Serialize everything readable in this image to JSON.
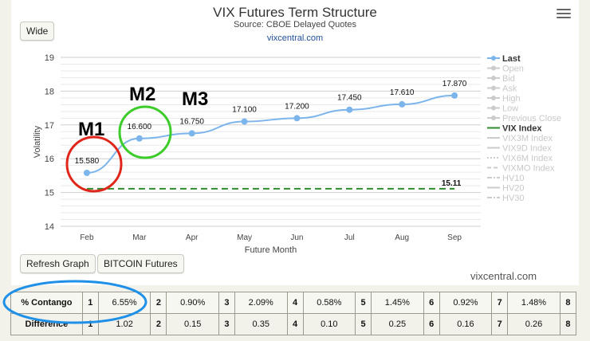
{
  "header": {
    "title": "VIX Futures Term Structure",
    "subtitle": "Source: CBOE Delayed Quotes",
    "site": "vixcentral.com"
  },
  "buttons": {
    "wide": "Wide",
    "refresh": "Refresh Graph",
    "bitcoin": "BITCOIN Futures"
  },
  "footer": {
    "site": "vixcentral.com"
  },
  "annotations": {
    "m1": "M1",
    "m2": "M2",
    "m3": "M3"
  },
  "chart_data": {
    "type": "line",
    "categories": [
      "Feb",
      "Mar",
      "Apr",
      "May",
      "Jun",
      "Jul",
      "Aug",
      "Sep"
    ],
    "series": [
      {
        "name": "Last",
        "values": [
          15.58,
          16.6,
          16.75,
          17.1,
          17.2,
          17.45,
          17.61,
          17.87
        ],
        "labels": [
          "15.580",
          "16.600",
          "16.750",
          "17.100",
          "17.200",
          "17.450",
          "17.610",
          "17.870"
        ],
        "color": "#7cb5ec"
      },
      {
        "name": "VIX Index",
        "values": [
          15.11,
          15.11,
          15.11,
          15.11,
          15.11,
          15.11,
          15.11,
          15.11
        ],
        "label": "15.11",
        "color": "#2e8b2e"
      }
    ],
    "xlabel": "Future Month",
    "ylabel": "Volatility",
    "yticks": [
      14,
      15,
      16,
      17,
      18,
      19
    ],
    "ylim": [
      14,
      19
    ],
    "grid": true,
    "legend_position": "right",
    "legend": [
      {
        "label": "Last",
        "active": true,
        "style": "line-dot",
        "color": "#7cb5ec"
      },
      {
        "label": "Open",
        "active": false,
        "style": "line-dot"
      },
      {
        "label": "Bid",
        "active": false,
        "style": "line-dot"
      },
      {
        "label": "Ask",
        "active": false,
        "style": "line-dot"
      },
      {
        "label": "High",
        "active": false,
        "style": "line-dot"
      },
      {
        "label": "Low",
        "active": false,
        "style": "line-dot"
      },
      {
        "label": "Previous Close",
        "active": false,
        "style": "line-dot"
      },
      {
        "label": "VIX Index",
        "active": true,
        "style": "line",
        "color": "#2e8b2e"
      },
      {
        "label": "VIX3M Index",
        "active": false,
        "style": "line"
      },
      {
        "label": "VIX9D Index",
        "active": false,
        "style": "line"
      },
      {
        "label": "VIX6M Index",
        "active": false,
        "style": "dotted"
      },
      {
        "label": "VIXMO Index",
        "active": false,
        "style": "dashed"
      },
      {
        "label": "HV10",
        "active": false,
        "style": "dash-dot"
      },
      {
        "label": "HV20",
        "active": false,
        "style": "line"
      },
      {
        "label": "HV30",
        "active": false,
        "style": "dash-dot"
      }
    ]
  },
  "contango": {
    "rows": [
      {
        "label": "% Contango",
        "cells": [
          [
            "1",
            "6.55%"
          ],
          [
            "2",
            "0.90%"
          ],
          [
            "3",
            "2.09%"
          ],
          [
            "4",
            "0.58%"
          ],
          [
            "5",
            "1.45%"
          ],
          [
            "6",
            "0.92%"
          ],
          [
            "7",
            "1.48%"
          ]
        ],
        "last": "8"
      },
      {
        "label": "Difference",
        "cells": [
          [
            "1",
            "1.02"
          ],
          [
            "2",
            "0.15"
          ],
          [
            "3",
            "0.35"
          ],
          [
            "4",
            "0.10"
          ],
          [
            "5",
            "0.25"
          ],
          [
            "6",
            "0.16"
          ],
          [
            "7",
            "0.26"
          ]
        ],
        "last": "8"
      }
    ]
  },
  "colors": {
    "highlight_red": "#e0251b",
    "highlight_green": "#3ccc2a",
    "highlight_blue": "#1e90e8"
  }
}
